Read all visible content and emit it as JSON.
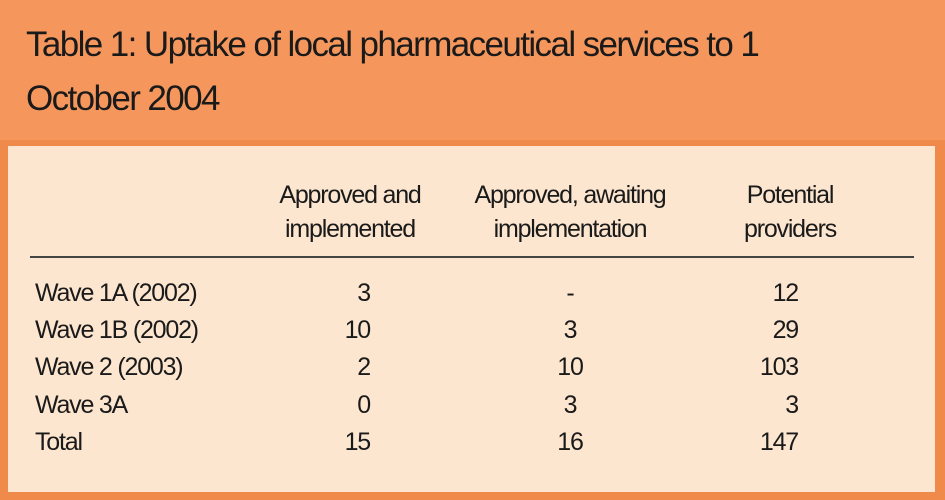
{
  "header": {
    "title": "Table 1: Uptake of local pharmaceutical services to 1 October 2004"
  },
  "table": {
    "columns": [
      "Approved and implemented",
      "Approved, awaiting implementation",
      "Potential providers"
    ],
    "rows": [
      [
        "Wave 1A (2002)",
        3,
        "-",
        12
      ],
      [
        "Wave 1B (2002)",
        10,
        3,
        29
      ],
      [
        "Wave 2 (2003)",
        2,
        10,
        103
      ],
      [
        "Wave 3A",
        0,
        3,
        3
      ],
      [
        "Total",
        15,
        16,
        147
      ]
    ]
  }
}
